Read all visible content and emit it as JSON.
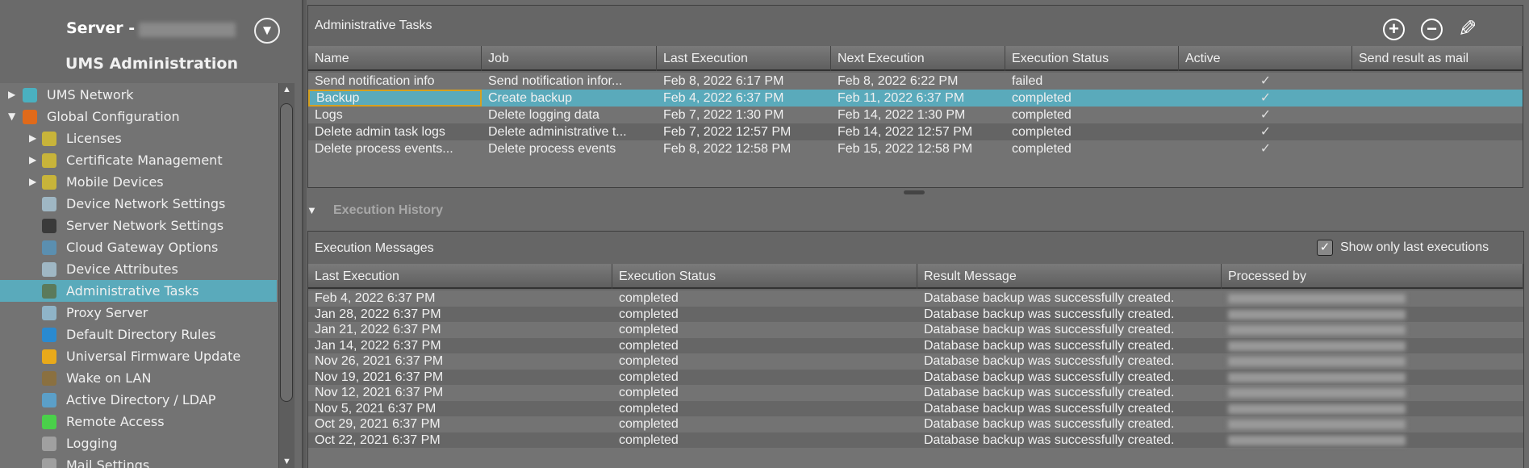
{
  "sidebar": {
    "server_label": "Server -",
    "title": "UMS Administration",
    "items": [
      {
        "label": "UMS Network",
        "level": 1,
        "expander": "collapsed",
        "icon": "ums-network-icon",
        "color": "#4ab0c0"
      },
      {
        "label": "Global Configuration",
        "level": 1,
        "expander": "expanded",
        "icon": "global-config-icon",
        "color": "#e06a1a"
      },
      {
        "label": "Licenses",
        "level": 2,
        "expander": "collapsed",
        "icon": "folder-icon",
        "color": "#c8b43a"
      },
      {
        "label": "Certificate Management",
        "level": 2,
        "expander": "collapsed",
        "icon": "folder-icon",
        "color": "#c8b43a"
      },
      {
        "label": "Mobile Devices",
        "level": 2,
        "expander": "collapsed",
        "icon": "folder-icon",
        "color": "#c8b43a"
      },
      {
        "label": "Device Network Settings",
        "level": 2,
        "icon": "device-network-icon",
        "color": "#9fb7c4"
      },
      {
        "label": "Server Network Settings",
        "level": 2,
        "icon": "server-network-icon",
        "color": "#3a3a3a"
      },
      {
        "label": "Cloud Gateway Options",
        "level": 2,
        "icon": "icg-icon",
        "color": "#5b8fb0"
      },
      {
        "label": "Device Attributes",
        "level": 2,
        "icon": "monitor-icon",
        "color": "#9fb7c4"
      },
      {
        "label": "Administrative Tasks",
        "level": 2,
        "icon": "clock-icon",
        "color": "#5b7a5b",
        "selected": true
      },
      {
        "label": "Proxy Server",
        "level": 2,
        "icon": "proxy-icon",
        "color": "#8fb4c8"
      },
      {
        "label": "Default Directory Rules",
        "level": 2,
        "icon": "directory-rules-icon",
        "color": "#2a8ad0"
      },
      {
        "label": "Universal Firmware Update",
        "level": 2,
        "icon": "firmware-icon",
        "color": "#e8a91a"
      },
      {
        "label": "Wake on LAN",
        "level": 2,
        "icon": "alarm-clock-icon",
        "color": "#8a7040"
      },
      {
        "label": "Active Directory / LDAP",
        "level": 2,
        "icon": "at-icon",
        "color": "#5b9fc8"
      },
      {
        "label": "Remote Access",
        "level": 2,
        "icon": "remote-access-icon",
        "color": "#4ad04a"
      },
      {
        "label": "Logging",
        "level": 2,
        "icon": "log-icon",
        "color": "#a0a0a0"
      },
      {
        "label": "Mail Settings",
        "level": 2,
        "icon": "mail-icon",
        "color": "#a0a0a0"
      }
    ]
  },
  "tasks": {
    "title": "Administrative Tasks",
    "toolbar": {
      "add": "add-icon",
      "remove": "remove-icon",
      "edit": "edit-icon"
    },
    "columns": [
      "Name",
      "Job",
      "Last Execution",
      "Next Execution",
      "Execution Status",
      "Active",
      "Send result as mail"
    ],
    "rows": [
      [
        "Send notification info",
        "Send notification infor...",
        "Feb 8, 2022 6:17 PM",
        "Feb 8, 2022 6:22 PM",
        "failed",
        "✓",
        ""
      ],
      [
        "Backup",
        "Create backup",
        "Feb 4, 2022 6:37 PM",
        "Feb 11, 2022 6:37 PM",
        "completed",
        "✓",
        ""
      ],
      [
        "Logs",
        "Delete logging data",
        "Feb 7, 2022 1:30 PM",
        "Feb 14, 2022 1:30 PM",
        "completed",
        "✓",
        ""
      ],
      [
        "Delete admin task logs",
        "Delete administrative t...",
        "Feb 7, 2022 12:57 PM",
        "Feb 14, 2022 12:57 PM",
        "completed",
        "✓",
        ""
      ],
      [
        "Delete process events...",
        "Delete process events",
        "Feb 8, 2022 12:58 PM",
        "Feb 15, 2022 12:58 PM",
        "completed",
        "✓",
        ""
      ]
    ],
    "selected_row": 1
  },
  "history": {
    "title": "Execution History",
    "messages_title": "Execution Messages",
    "show_only_last_label": "Show only last executions",
    "show_only_last_checked": true,
    "columns": [
      "Last Execution",
      "Execution Status",
      "Result Message",
      "Processed by"
    ],
    "rows": [
      [
        "Feb 4, 2022 6:37 PM",
        "completed",
        "Database backup was successfully created."
      ],
      [
        "Jan 28, 2022 6:37 PM",
        "completed",
        "Database backup was successfully created."
      ],
      [
        "Jan 21, 2022 6:37 PM",
        "completed",
        "Database backup was successfully created."
      ],
      [
        "Jan 14, 2022 6:37 PM",
        "completed",
        "Database backup was successfully created."
      ],
      [
        "Nov 26, 2021 6:37 PM",
        "completed",
        "Database backup was successfully created."
      ],
      [
        "Nov 19, 2021 6:37 PM",
        "completed",
        "Database backup was successfully created."
      ],
      [
        "Nov 12, 2021 6:37 PM",
        "completed",
        "Database backup was successfully created."
      ],
      [
        "Nov 5, 2021 6:37 PM",
        "completed",
        "Database backup was successfully created."
      ],
      [
        "Oct 29, 2021 6:37 PM",
        "completed",
        "Database backup was successfully created."
      ],
      [
        "Oct 22, 2021 6:37 PM",
        "completed",
        "Database backup was successfully created."
      ]
    ]
  },
  "colors": {
    "selection": "#5aaabb",
    "focus_border": "#d6a020"
  }
}
